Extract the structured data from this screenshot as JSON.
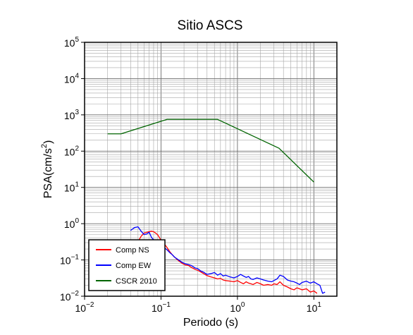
{
  "chart_data": {
    "type": "line",
    "title": "Sitio ASCS",
    "xlabel": "Periodo (s)",
    "ylabel": {
      "base": "PSA(cm/s",
      "sup": "2",
      "end": ")"
    },
    "x_scale": "log",
    "y_scale": "log",
    "xlim": [
      0.01,
      20
    ],
    "ylim": [
      0.01,
      100000
    ],
    "grid": true,
    "legend_position": "bottom-left",
    "x_ticks": [
      {
        "base": "10",
        "exp": "−2"
      },
      {
        "base": "10",
        "exp": "−1"
      },
      {
        "base": "10",
        "exp": "0"
      },
      {
        "base": "10",
        "exp": "1"
      }
    ],
    "y_ticks": [
      {
        "base": "10",
        "exp": "−2"
      },
      {
        "base": "10",
        "exp": "−1"
      },
      {
        "base": "10",
        "exp": "0"
      },
      {
        "base": "10",
        "exp": "1"
      },
      {
        "base": "10",
        "exp": "2"
      },
      {
        "base": "10",
        "exp": "3"
      },
      {
        "base": "10",
        "exp": "4"
      },
      {
        "base": "10",
        "exp": "5"
      }
    ],
    "series": [
      {
        "name": "Comp NS",
        "color": "#ff0000",
        "points": [
          [
            0.05,
            0.32
          ],
          [
            0.055,
            0.45
          ],
          [
            0.06,
            0.55
          ],
          [
            0.065,
            0.58
          ],
          [
            0.07,
            0.6
          ],
          [
            0.075,
            0.62
          ],
          [
            0.08,
            0.6
          ],
          [
            0.085,
            0.55
          ],
          [
            0.09,
            0.5
          ],
          [
            0.095,
            0.42
          ],
          [
            0.1,
            0.35
          ],
          [
            0.11,
            0.28
          ],
          [
            0.12,
            0.22
          ],
          [
            0.13,
            0.17
          ],
          [
            0.14,
            0.14
          ],
          [
            0.15,
            0.12
          ],
          [
            0.17,
            0.095
          ],
          [
            0.19,
            0.08
          ],
          [
            0.21,
            0.072
          ],
          [
            0.23,
            0.07
          ],
          [
            0.25,
            0.062
          ],
          [
            0.28,
            0.055
          ],
          [
            0.3,
            0.052
          ],
          [
            0.33,
            0.047
          ],
          [
            0.36,
            0.042
          ],
          [
            0.4,
            0.037
          ],
          [
            0.45,
            0.034
          ],
          [
            0.5,
            0.032
          ],
          [
            0.55,
            0.03
          ],
          [
            0.6,
            0.031
          ],
          [
            0.65,
            0.028
          ],
          [
            0.7,
            0.027
          ],
          [
            0.8,
            0.026
          ],
          [
            0.9,
            0.025
          ],
          [
            1.0,
            0.027
          ],
          [
            1.1,
            0.024
          ],
          [
            1.2,
            0.022
          ],
          [
            1.3,
            0.025
          ],
          [
            1.4,
            0.023
          ],
          [
            1.5,
            0.022
          ],
          [
            1.6,
            0.021
          ],
          [
            1.8,
            0.024
          ],
          [
            2.0,
            0.022
          ],
          [
            2.2,
            0.02
          ],
          [
            2.5,
            0.021
          ],
          [
            2.8,
            0.02
          ],
          [
            3.0,
            0.022
          ],
          [
            3.3,
            0.021
          ],
          [
            3.6,
            0.025
          ],
          [
            4.0,
            0.02
          ],
          [
            4.5,
            0.018
          ],
          [
            5.0,
            0.016
          ],
          [
            5.5,
            0.015
          ],
          [
            6.0,
            0.017
          ],
          [
            6.5,
            0.016
          ],
          [
            7.0,
            0.015
          ],
          [
            8.0,
            0.016
          ],
          [
            9.0,
            0.013
          ],
          [
            10.0,
            0.014
          ],
          [
            11.0,
            0.012
          ]
        ]
      },
      {
        "name": "Comp EW",
        "color": "#0000ff",
        "points": [
          [
            0.04,
            0.65
          ],
          [
            0.045,
            0.78
          ],
          [
            0.05,
            0.82
          ],
          [
            0.055,
            0.62
          ],
          [
            0.06,
            0.5
          ],
          [
            0.065,
            0.52
          ],
          [
            0.07,
            0.58
          ],
          [
            0.075,
            0.42
          ],
          [
            0.08,
            0.36
          ],
          [
            0.085,
            0.32
          ],
          [
            0.09,
            0.28
          ],
          [
            0.1,
            0.25
          ],
          [
            0.11,
            0.22
          ],
          [
            0.12,
            0.19
          ],
          [
            0.13,
            0.16
          ],
          [
            0.14,
            0.14
          ],
          [
            0.15,
            0.12
          ],
          [
            0.17,
            0.1
          ],
          [
            0.19,
            0.085
          ],
          [
            0.21,
            0.078
          ],
          [
            0.23,
            0.074
          ],
          [
            0.25,
            0.07
          ],
          [
            0.28,
            0.06
          ],
          [
            0.3,
            0.058
          ],
          [
            0.33,
            0.05
          ],
          [
            0.36,
            0.046
          ],
          [
            0.4,
            0.04
          ],
          [
            0.45,
            0.042
          ],
          [
            0.5,
            0.045
          ],
          [
            0.55,
            0.038
          ],
          [
            0.6,
            0.042
          ],
          [
            0.65,
            0.036
          ],
          [
            0.7,
            0.038
          ],
          [
            0.8,
            0.034
          ],
          [
            0.9,
            0.032
          ],
          [
            1.0,
            0.035
          ],
          [
            1.1,
            0.04
          ],
          [
            1.2,
            0.036
          ],
          [
            1.3,
            0.033
          ],
          [
            1.4,
            0.035
          ],
          [
            1.5,
            0.03
          ],
          [
            1.6,
            0.029
          ],
          [
            1.8,
            0.032
          ],
          [
            2.0,
            0.03
          ],
          [
            2.2,
            0.028
          ],
          [
            2.5,
            0.026
          ],
          [
            2.8,
            0.025
          ],
          [
            3.0,
            0.027
          ],
          [
            3.3,
            0.03
          ],
          [
            3.6,
            0.038
          ],
          [
            4.0,
            0.035
          ],
          [
            4.5,
            0.028
          ],
          [
            5.0,
            0.026
          ],
          [
            5.5,
            0.025
          ],
          [
            6.0,
            0.023
          ],
          [
            6.5,
            0.021
          ],
          [
            7.0,
            0.024
          ],
          [
            8.0,
            0.026
          ],
          [
            9.0,
            0.023
          ],
          [
            10.0,
            0.025
          ],
          [
            11.0,
            0.022
          ],
          [
            12.0,
            0.02
          ],
          [
            13.0,
            0.012
          ],
          [
            14.0,
            0.013
          ]
        ]
      },
      {
        "name": "CSCR 2010",
        "color": "#006400",
        "points": [
          [
            0.02,
            300
          ],
          [
            0.03,
            300
          ],
          [
            0.12,
            750
          ],
          [
            0.55,
            750
          ],
          [
            3.5,
            120
          ],
          [
            10.0,
            14
          ]
        ]
      }
    ]
  }
}
